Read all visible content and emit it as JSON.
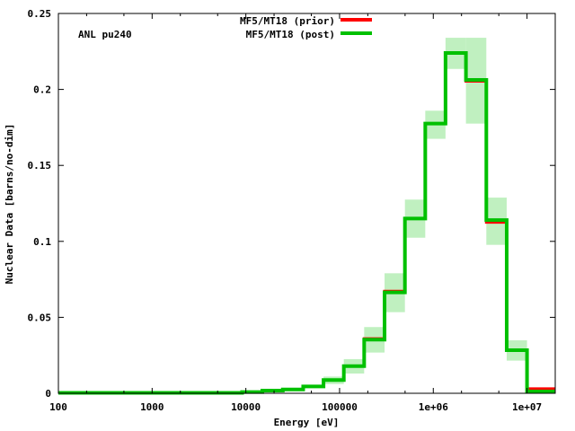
{
  "chart_data": {
    "type": "line",
    "subtype": "step-histogram-with-uncertainty-band",
    "title": "",
    "annotation": "ANL pu240",
    "xlabel": "Energy [eV]",
    "ylabel": "Nuclear Data [barns/no-dim]",
    "xscale": "log",
    "xlim": [
      100,
      20000000
    ],
    "ylim": [
      0,
      0.25
    ],
    "grid": false,
    "legend_position": "top-center",
    "x_ticks": [
      100,
      1000,
      10000,
      100000,
      1000000,
      10000000
    ],
    "x_tick_labels": [
      "100",
      "1000",
      "10000",
      "100000",
      "1e+06",
      "1e+07"
    ],
    "y_ticks": [
      0,
      0.05,
      0.1,
      0.15,
      0.2,
      0.25
    ],
    "y_tick_labels": [
      "0",
      "0.05",
      "0.1",
      "0.15",
      "0.2",
      "0.25"
    ],
    "bin_edges": [
      100,
      9120,
      15000,
      24800,
      40900,
      67400,
      111000,
      183000,
      302000,
      498000,
      821000,
      1350000,
      2230000,
      3680000,
      6070000,
      10000000,
      20000000
    ],
    "series": [
      {
        "name": "MF5/MT18 (prior)",
        "color": "#ff0000",
        "values": [
          0.0003,
          0.0008,
          0.0018,
          0.0025,
          0.0045,
          0.0087,
          0.0179,
          0.036,
          0.0672,
          0.115,
          0.1775,
          0.224,
          0.2054,
          0.1125,
          0.0284,
          0.003
        ]
      },
      {
        "name": "MF5/MT18 (post)",
        "color": "#00c000",
        "values": [
          0.0003,
          0.0008,
          0.0018,
          0.0025,
          0.0045,
          0.0087,
          0.0179,
          0.0353,
          0.0664,
          0.115,
          0.1775,
          0.224,
          0.2063,
          0.114,
          0.0284,
          0.0012
        ],
        "band_color": "#c0f0c0",
        "band_lower": [
          0.0003,
          0.0008,
          0.0016,
          0.0022,
          0.0038,
          0.0061,
          0.013,
          0.0268,
          0.0534,
          0.1024,
          0.1675,
          0.2135,
          0.1775,
          0.0977,
          0.0215,
          0.001
        ],
        "band_upper": [
          0.0003,
          0.0008,
          0.002,
          0.0028,
          0.0052,
          0.011,
          0.0225,
          0.0436,
          0.079,
          0.1275,
          0.186,
          0.234,
          0.234,
          0.1288,
          0.0349,
          0.0035
        ]
      }
    ]
  }
}
